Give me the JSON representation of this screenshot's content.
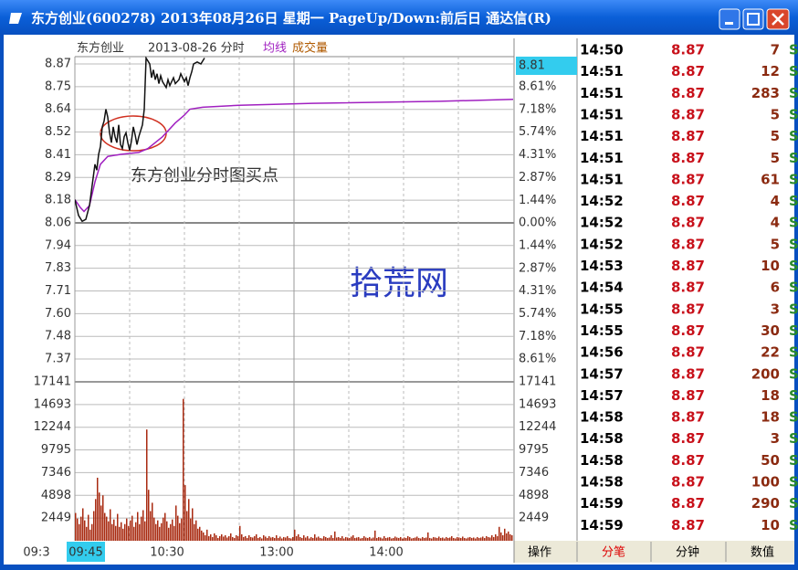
{
  "window": {
    "title": "东方创业(600278) 2013年08月26日 星期一 PageUp/Down:前后日 通达信(R)"
  },
  "chart_header": {
    "name": "东方创业",
    "date": "2013-08-26 分时",
    "avg_legend": "均线",
    "volume_legend": "成交量"
  },
  "current_price_box": "8.81",
  "price_axis": {
    "left": [
      "8.87",
      "8.75",
      "8.64",
      "8.52",
      "8.41",
      "8.29",
      "8.18",
      "8.06",
      "7.94",
      "7.83",
      "7.71",
      "7.60",
      "7.48",
      "7.37"
    ],
    "right": [
      "8.61%",
      "7.18%",
      "5.74%",
      "4.31%",
      "2.87%",
      "1.44%",
      "0.00%",
      "1.44%",
      "2.87%",
      "4.31%",
      "5.74%",
      "7.18%",
      "8.61%"
    ]
  },
  "volume_axis": {
    "left": [
      "17141",
      "14693",
      "12244",
      "9795",
      "7346",
      "4898",
      "2449"
    ],
    "right": [
      "17141",
      "14693",
      "12244",
      "9795",
      "7346",
      "4898",
      "2449"
    ]
  },
  "time_axis": [
    "09:3",
    "09:45",
    "10:30",
    "13:00",
    "14:00"
  ],
  "price_scale": {
    "ylim": [
      7.37,
      8.87
    ],
    "xlim": [
      0,
      240
    ]
  },
  "volume_scale": {
    "ylim": [
      0,
      17141
    ]
  },
  "price_line": {
    "minutes": [
      0,
      2,
      4,
      6,
      8,
      10,
      11,
      12,
      13,
      14,
      15,
      16,
      17,
      18,
      19,
      20,
      21,
      22,
      23,
      24,
      25,
      26,
      27,
      28,
      29,
      30,
      31,
      32,
      33,
      34,
      35,
      36,
      37,
      38,
      39,
      41,
      42,
      43,
      44,
      45,
      46,
      47,
      48,
      50,
      51,
      52,
      54,
      55,
      57,
      58,
      60,
      61,
      62,
      63,
      64,
      65,
      67,
      69,
      71
    ],
    "values": [
      8.18,
      8.1,
      8.07,
      8.08,
      8.15,
      8.29,
      8.36,
      8.33,
      8.41,
      8.45,
      8.55,
      8.58,
      8.64,
      8.6,
      8.52,
      8.47,
      8.55,
      8.5,
      8.47,
      8.56,
      8.46,
      8.44,
      8.5,
      8.52,
      8.47,
      8.43,
      8.48,
      8.55,
      8.51,
      8.46,
      8.5,
      8.53,
      8.56,
      8.64,
      8.9,
      8.87,
      8.8,
      8.84,
      8.79,
      8.82,
      8.77,
      8.81,
      8.78,
      8.75,
      8.79,
      8.76,
      8.8,
      8.77,
      8.79,
      8.82,
      8.78,
      8.8,
      8.76,
      8.8,
      8.83,
      8.87,
      8.88,
      8.87,
      8.9
    ]
  },
  "avg_line": {
    "minutes": [
      0,
      3,
      5,
      8,
      11,
      14,
      18,
      25,
      35,
      40,
      48,
      55,
      60,
      63,
      70,
      90,
      130,
      200,
      240
    ],
    "values": [
      8.18,
      8.14,
      8.12,
      8.15,
      8.27,
      8.36,
      8.4,
      8.41,
      8.42,
      8.44,
      8.5,
      8.57,
      8.61,
      8.64,
      8.65,
      8.66,
      8.67,
      8.68,
      8.69
    ]
  },
  "volume_bars": [
    3000,
    2400,
    1800,
    2600,
    3500,
    2200,
    1500,
    2800,
    1200,
    1800,
    3200,
    4500,
    6800,
    5200,
    3800,
    4900,
    3000,
    2600,
    2100,
    3400,
    1800,
    2300,
    1600,
    2900,
    1500,
    2000,
    1300,
    1800,
    2400,
    1600,
    2200,
    2700,
    1500,
    2000,
    3100,
    1800,
    2600,
    3300,
    2100,
    12000,
    5500,
    3200,
    4100,
    2500,
    1800,
    2200,
    1500,
    1900,
    2500,
    3000,
    2100,
    1400,
    1800,
    2300,
    1600,
    3800,
    2700,
    1900,
    2400,
    15300,
    6000,
    3200,
    4500,
    2400,
    3500,
    1800,
    2200,
    1300,
    1500,
    1100,
    900,
    600,
    1200,
    500,
    700,
    400,
    800,
    600,
    300,
    500,
    700,
    450,
    600,
    350,
    500,
    800,
    400,
    300,
    600,
    500,
    1600,
    700,
    400,
    500,
    300,
    600,
    400,
    350,
    500,
    700,
    300,
    400,
    250,
    600,
    450,
    300,
    500,
    350,
    400,
    300,
    600,
    300,
    450,
    250,
    400,
    350,
    500,
    300,
    250,
    400,
    1200,
    500,
    700,
    400,
    300,
    600,
    350,
    500,
    250,
    400,
    300,
    700,
    350,
    450,
    300,
    250,
    500,
    400,
    300,
    350,
    600,
    300,
    1000,
    350,
    400,
    300,
    500,
    250,
    400,
    350,
    300,
    450,
    600,
    300,
    350,
    400,
    250,
    300,
    500,
    350,
    300,
    400,
    250,
    350,
    1100,
    300,
    400,
    350,
    250,
    500,
    300,
    350,
    400,
    250,
    300,
    450,
    350,
    300,
    400,
    250,
    350,
    300,
    500,
    400,
    250,
    300,
    350,
    450,
    300,
    250,
    400,
    300,
    350,
    900,
    300,
    250,
    400,
    350,
    300,
    450,
    300,
    350,
    250,
    400,
    300,
    350,
    500,
    300,
    250,
    400,
    350,
    300,
    450,
    300,
    250,
    350,
    400,
    300,
    350,
    250,
    400,
    300,
    350,
    450,
    300,
    500,
    400,
    350,
    600,
    400,
    700,
    500,
    1500,
    900,
    600,
    1300,
    800,
    1000,
    700,
    600
  ],
  "annotations": {
    "buy_point": "东方创业分时图买点",
    "watermark": "拾荒网"
  },
  "tabs": [
    "操作",
    "分笔",
    "分钟",
    "数值"
  ],
  "trades": [
    [
      "14:50",
      "8.87",
      "7",
      "S"
    ],
    [
      "14:51",
      "8.87",
      "12",
      "S"
    ],
    [
      "14:51",
      "8.87",
      "283",
      "S"
    ],
    [
      "14:51",
      "8.87",
      "5",
      "S"
    ],
    [
      "14:51",
      "8.87",
      "5",
      "S"
    ],
    [
      "14:51",
      "8.87",
      "5",
      "S"
    ],
    [
      "14:51",
      "8.87",
      "61",
      "S"
    ],
    [
      "14:52",
      "8.87",
      "4",
      "S"
    ],
    [
      "14:52",
      "8.87",
      "4",
      "S"
    ],
    [
      "14:52",
      "8.87",
      "5",
      "S"
    ],
    [
      "14:53",
      "8.87",
      "10",
      "S"
    ],
    [
      "14:54",
      "8.87",
      "6",
      "S"
    ],
    [
      "14:55",
      "8.87",
      "3",
      "S"
    ],
    [
      "14:55",
      "8.87",
      "30",
      "S"
    ],
    [
      "14:56",
      "8.87",
      "22",
      "S"
    ],
    [
      "14:57",
      "8.87",
      "200",
      "S"
    ],
    [
      "14:57",
      "8.87",
      "18",
      "S"
    ],
    [
      "14:58",
      "8.87",
      "18",
      "S"
    ],
    [
      "14:58",
      "8.87",
      "3",
      "S"
    ],
    [
      "14:58",
      "8.87",
      "50",
      "S"
    ],
    [
      "14:58",
      "8.87",
      "100",
      "S"
    ],
    [
      "14:59",
      "8.87",
      "290",
      "S"
    ],
    [
      "14:59",
      "8.87",
      "10",
      "S"
    ]
  ]
}
